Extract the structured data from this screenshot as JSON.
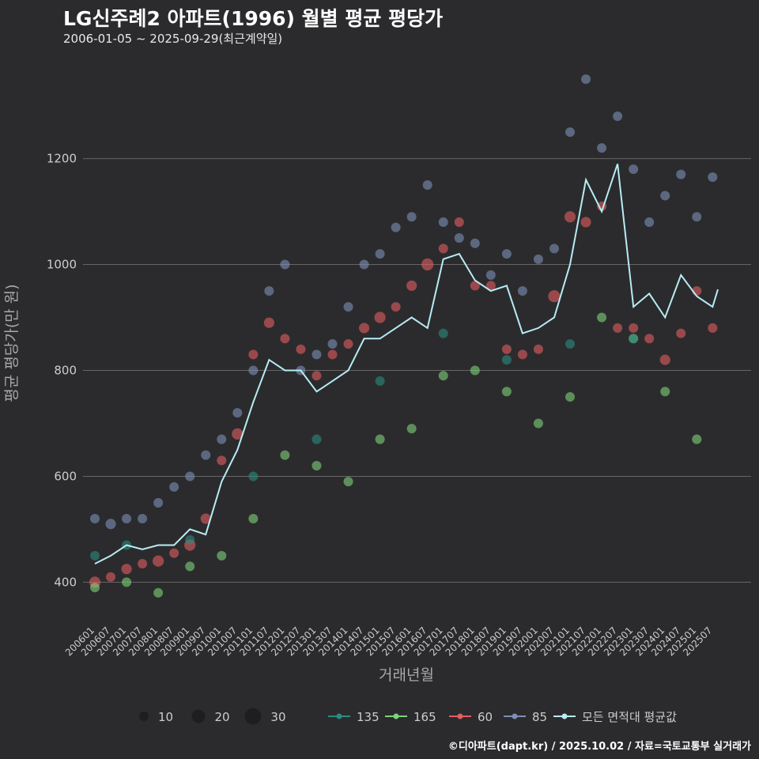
{
  "title": "LG신주례2 아파트(1996) 월별 평균 평당가",
  "subtitle": "2006-01-05 ~ 2025-09-29(최근계약일)",
  "footer": "©디아파트(dapt.kr) / 2025.10.02 / 자료=국토교통부 실거래가",
  "colors": {
    "background": "#2b2b2d",
    "grid": "#666666",
    "text": "#cccccc",
    "avg_line": "#b8ecf5",
    "s135": "#2a8c7e",
    "s165": "#7fd27a",
    "s60": "#e35d61",
    "s85": "#7d8fb8"
  },
  "chart_data": {
    "type": "scatter",
    "xlabel": "거래년월",
    "ylabel": "평균 평당가(만 원)",
    "ylim": [
      320,
      1380
    ],
    "yticks": [
      400,
      600,
      800,
      1000,
      1200
    ],
    "x_range": [
      "200601",
      "202509"
    ],
    "x_ticks": [
      "200601",
      "200607",
      "200701",
      "200707",
      "200801",
      "200807",
      "200901",
      "200907",
      "201001",
      "201007",
      "201101",
      "201107",
      "201201",
      "201207",
      "201301",
      "201307",
      "201401",
      "201407",
      "201501",
      "201507",
      "201601",
      "201607",
      "201701",
      "201707",
      "201801",
      "201807",
      "201901",
      "201907",
      "202001",
      "202007",
      "202101",
      "202107",
      "202201",
      "202207",
      "202301",
      "202307",
      "202401",
      "202407",
      "202501",
      "202507"
    ],
    "size_legend": [
      {
        "label": "10",
        "value": 10
      },
      {
        "label": "20",
        "value": 20
      },
      {
        "label": "30",
        "value": 30
      }
    ],
    "series_legend": [
      "135",
      "165",
      "60",
      "85",
      "모든 면적대 평균값"
    ],
    "average_line": [
      [
        "200601",
        435
      ],
      [
        "200607",
        450
      ],
      [
        "200701",
        470
      ],
      [
        "200707",
        462
      ],
      [
        "200801",
        470
      ],
      [
        "200807",
        470
      ],
      [
        "200901",
        500
      ],
      [
        "200907",
        490
      ],
      [
        "201001",
        590
      ],
      [
        "201007",
        650
      ],
      [
        "201101",
        740
      ],
      [
        "201107",
        820
      ],
      [
        "201201",
        800
      ],
      [
        "201207",
        800
      ],
      [
        "201301",
        760
      ],
      [
        "201307",
        780
      ],
      [
        "201401",
        800
      ],
      [
        "201407",
        860
      ],
      [
        "201501",
        860
      ],
      [
        "201507",
        880
      ],
      [
        "201601",
        900
      ],
      [
        "201607",
        880
      ],
      [
        "201701",
        1010
      ],
      [
        "201707",
        1020
      ],
      [
        "201801",
        970
      ],
      [
        "201807",
        950
      ],
      [
        "201901",
        960
      ],
      [
        "201907",
        870
      ],
      [
        "202001",
        880
      ],
      [
        "202007",
        900
      ],
      [
        "202101",
        1000
      ],
      [
        "202107",
        1160
      ],
      [
        "202201",
        1100
      ],
      [
        "202207",
        1190
      ],
      [
        "202301",
        920
      ],
      [
        "202307",
        945
      ],
      [
        "202401",
        900
      ],
      [
        "202407",
        980
      ],
      [
        "202501",
        940
      ],
      [
        "202507",
        920
      ],
      [
        "202509",
        953
      ]
    ],
    "series": [
      {
        "name": "60",
        "points": [
          [
            "200601",
            400,
            14
          ],
          [
            "200607",
            410,
            10
          ],
          [
            "200701",
            425,
            12
          ],
          [
            "200707",
            435,
            10
          ],
          [
            "200801",
            440,
            14
          ],
          [
            "200807",
            455,
            10
          ],
          [
            "200901",
            470,
            14
          ],
          [
            "200907",
            520,
            12
          ],
          [
            "201001",
            630,
            10
          ],
          [
            "201007",
            680,
            14
          ],
          [
            "201101",
            830,
            10
          ],
          [
            "201107",
            890,
            12
          ],
          [
            "201201",
            860,
            10
          ],
          [
            "201207",
            840,
            10
          ],
          [
            "201301",
            790,
            10
          ],
          [
            "201307",
            830,
            10
          ],
          [
            "201401",
            850,
            10
          ],
          [
            "201407",
            880,
            12
          ],
          [
            "201501",
            900,
            14
          ],
          [
            "201507",
            920,
            10
          ],
          [
            "201601",
            960,
            12
          ],
          [
            "201607",
            1000,
            16
          ],
          [
            "201701",
            1030,
            10
          ],
          [
            "201707",
            1080,
            10
          ],
          [
            "201801",
            960,
            10
          ],
          [
            "201807",
            960,
            10
          ],
          [
            "201901",
            840,
            10
          ],
          [
            "201907",
            830,
            10
          ],
          [
            "202001",
            840,
            10
          ],
          [
            "202007",
            940,
            16
          ],
          [
            "202101",
            1090,
            14
          ],
          [
            "202107",
            1080,
            12
          ],
          [
            "202201",
            1110,
            10
          ],
          [
            "202207",
            880,
            10
          ],
          [
            "202301",
            880,
            10
          ],
          [
            "202307",
            860,
            10
          ],
          [
            "202401",
            820,
            12
          ],
          [
            "202407",
            870,
            10
          ],
          [
            "202501",
            950,
            10
          ],
          [
            "202507",
            880,
            10
          ]
        ]
      },
      {
        "name": "85",
        "points": [
          [
            "200601",
            520,
            10
          ],
          [
            "200607",
            510,
            12
          ],
          [
            "200701",
            520,
            10
          ],
          [
            "200707",
            520,
            10
          ],
          [
            "200801",
            550,
            10
          ],
          [
            "200807",
            580,
            10
          ],
          [
            "200901",
            600,
            10
          ],
          [
            "200907",
            640,
            10
          ],
          [
            "201001",
            670,
            10
          ],
          [
            "201007",
            720,
            10
          ],
          [
            "201101",
            800,
            10
          ],
          [
            "201107",
            950,
            10
          ],
          [
            "201201",
            1000,
            10
          ],
          [
            "201207",
            800,
            10
          ],
          [
            "201301",
            830,
            10
          ],
          [
            "201307",
            850,
            10
          ],
          [
            "201401",
            920,
            10
          ],
          [
            "201407",
            1000,
            10
          ],
          [
            "201501",
            1020,
            10
          ],
          [
            "201507",
            1070,
            10
          ],
          [
            "201601",
            1090,
            10
          ],
          [
            "201607",
            1150,
            10
          ],
          [
            "201701",
            1080,
            10
          ],
          [
            "201707",
            1050,
            10
          ],
          [
            "201801",
            1040,
            10
          ],
          [
            "201807",
            980,
            10
          ],
          [
            "201901",
            1020,
            10
          ],
          [
            "201907",
            950,
            10
          ],
          [
            "202001",
            1010,
            10
          ],
          [
            "202007",
            1030,
            10
          ],
          [
            "202101",
            1250,
            10
          ],
          [
            "202107",
            1350,
            10
          ],
          [
            "202201",
            1220,
            10
          ],
          [
            "202207",
            1280,
            10
          ],
          [
            "202301",
            1180,
            10
          ],
          [
            "202307",
            1080,
            10
          ],
          [
            "202401",
            1130,
            10
          ],
          [
            "202407",
            1170,
            10
          ],
          [
            "202501",
            1090,
            10
          ],
          [
            "202507",
            1165,
            10
          ]
        ]
      },
      {
        "name": "165",
        "points": [
          [
            "200601",
            390,
            10
          ],
          [
            "200701",
            400,
            10
          ],
          [
            "200801",
            380,
            10
          ],
          [
            "200901",
            430,
            10
          ],
          [
            "201001",
            450,
            10
          ],
          [
            "201101",
            520,
            10
          ],
          [
            "201201",
            640,
            10
          ],
          [
            "201301",
            620,
            10
          ],
          [
            "201401",
            590,
            10
          ],
          [
            "201501",
            670,
            10
          ],
          [
            "201601",
            690,
            10
          ],
          [
            "201701",
            790,
            10
          ],
          [
            "201801",
            800,
            10
          ],
          [
            "201901",
            760,
            10
          ],
          [
            "202001",
            700,
            10
          ],
          [
            "202101",
            750,
            10
          ],
          [
            "202201",
            900,
            10
          ],
          [
            "202301",
            860,
            10
          ],
          [
            "202401",
            760,
            10
          ],
          [
            "202501",
            670,
            10
          ]
        ]
      },
      {
        "name": "135",
        "points": [
          [
            "200601",
            450,
            10
          ],
          [
            "200701",
            470,
            10
          ],
          [
            "200901",
            480,
            10
          ],
          [
            "201101",
            600,
            10
          ],
          [
            "201301",
            670,
            10
          ],
          [
            "201501",
            780,
            10
          ],
          [
            "201701",
            870,
            10
          ],
          [
            "201901",
            820,
            10
          ],
          [
            "202101",
            850,
            10
          ],
          [
            "202301",
            860,
            10
          ]
        ]
      }
    ]
  }
}
